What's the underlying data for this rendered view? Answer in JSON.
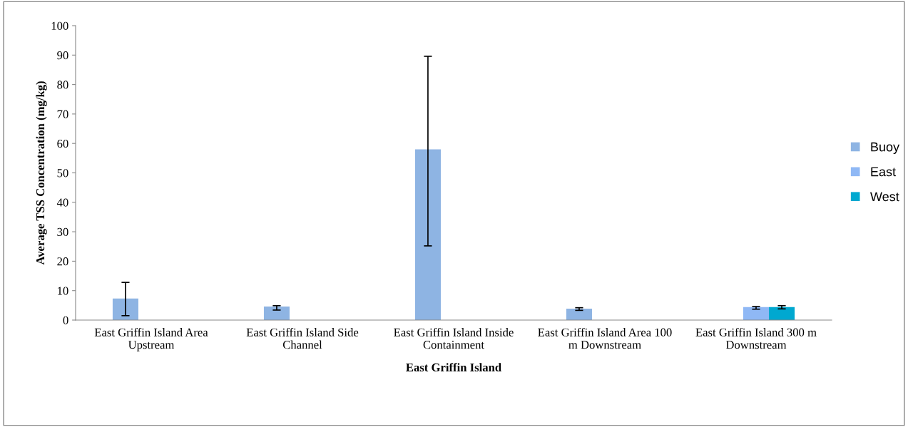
{
  "chart_data": {
    "type": "bar",
    "xlabel": "East Griffin Island",
    "ylabel": "Average TSS Concentration (mg/kg)",
    "categories": [
      "East Griffin Island Area Upstream",
      "East Griffin Island Side Channel",
      "East Griffin Island Inside Containment",
      "East Griffin Island Area 100 m Downstream",
      "East Griffin Island 300 m Downstream"
    ],
    "series": [
      {
        "name": "Buoy",
        "color": "#8eb4e3",
        "values": [
          7.3,
          4.6,
          58,
          3.9,
          null
        ],
        "errors": [
          [
            1.5,
            12.8
          ],
          [
            3.4,
            4.9
          ],
          [
            25.2,
            89.6
          ],
          [
            3.3,
            4.2
          ],
          null
        ]
      },
      {
        "name": "East",
        "color": "#8fb8f5",
        "values": [
          null,
          null,
          null,
          null,
          4.4
        ],
        "errors": [
          null,
          null,
          null,
          null,
          [
            3.7,
            4.6
          ]
        ]
      },
      {
        "name": "West",
        "color": "#00a8d0",
        "values": [
          null,
          null,
          null,
          null,
          4.4
        ],
        "errors": [
          null,
          null,
          null,
          null,
          [
            3.8,
            4.9
          ]
        ]
      }
    ],
    "ylim": [
      0,
      100
    ],
    "yticks": [
      0,
      10,
      20,
      30,
      40,
      50,
      60,
      70,
      80,
      90,
      100
    ],
    "grid": false,
    "legend": "right"
  }
}
